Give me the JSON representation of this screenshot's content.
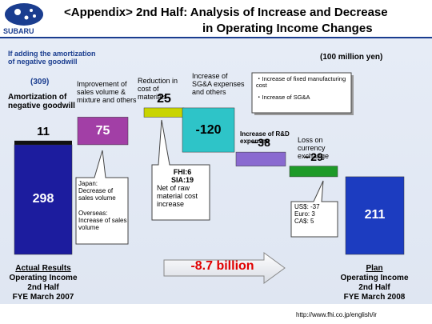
{
  "header": {
    "logo": "SUBARU",
    "title_lines": [
      "<Appendix>  2nd Half: Analysis of Increase and Decrease",
      "in Operating Income Changes"
    ]
  },
  "chart_data": {
    "type": "waterfall",
    "unit": "(100 million yen)",
    "note": "If adding the amortization of negative goodwill",
    "note_total": "(309)",
    "addition": {
      "name": "Amortization of negative goodwill",
      "value": 11,
      "color": "#111111"
    },
    "categories": [
      "Actual Results",
      "Improvement of sales volume & mixture and others",
      "Reduction in cost of materials",
      "Increase of SG&A expenses and others",
      "Increase of R&D expenses",
      "Loss on currency exchange",
      "Plan"
    ],
    "values": [
      298,
      75,
      25,
      -120,
      -38,
      -29,
      211
    ],
    "value_labels": [
      "298",
      "75",
      "25",
      "-120",
      "−38",
      "−29",
      "211"
    ],
    "colors": [
      "#1c1c9e",
      "#a23fa6",
      "#c9d400",
      "#2ec4c8",
      "#8a6ad0",
      "#1e9a28",
      "#1c3cc0"
    ],
    "captions": {
      "start": [
        "Operating Income",
        "2nd Half",
        "FYE March 2007"
      ],
      "end": [
        "Operating Income",
        "2nd Half",
        "FYE March 2008"
      ]
    },
    "callouts": [
      {
        "lines": [
          "Japan:",
          "Decrease of sales volume",
          "Overseas:",
          "Increase of sales volume"
        ]
      },
      {
        "lines": [
          "FHI:6",
          "SIA:19",
          "Net of raw material cost increase"
        ]
      },
      {
        "lines": [
          "・Increase of fixed manufacturing cost",
          "・Increase of SG&A"
        ]
      },
      {
        "lines": [
          "US$: -37",
          "Euro: 3",
          "CA$: 5"
        ]
      }
    ],
    "change": "-8.7 billion"
  },
  "footer": {
    "url": "http://www.fhi.co.jp/english/ir"
  }
}
